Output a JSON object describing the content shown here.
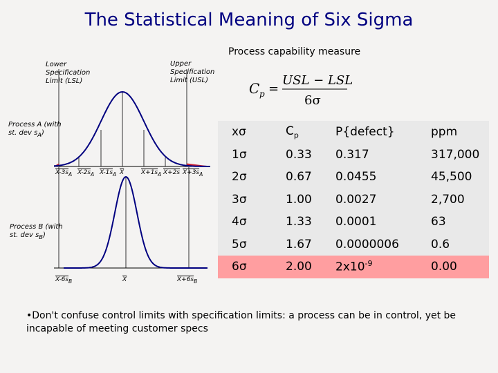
{
  "title": "The Statistical Meaning of Six Sigma",
  "capability_title": "Process capability measure",
  "lsl_label": "Lower Specification Limit (LSL)",
  "usl_label": "Upper Specification Limit (USL)",
  "process_a_label": "Process A (with st. dev s",
  "process_a_sub": "A",
  "process_b_label": "Process B (with st. dev s",
  "process_b_sub": "B",
  "formula": {
    "lhs": "C",
    "lhs_sub": "p",
    "eq": "=",
    "num": "USL − LSL",
    "den": "6σ"
  },
  "process_a_ticks": [
    "X-3s",
    "X-2s",
    "X-1s",
    "X",
    "X+1s",
    "X+2s",
    "X+3s"
  ],
  "process_a_tick_subs": [
    "A",
    "A",
    "A",
    "",
    "A",
    "",
    "A"
  ],
  "process_b_ticks": [
    "X-6s",
    "X",
    "X+6s"
  ],
  "process_b_tick_subs": [
    "B",
    "",
    "B"
  ],
  "table": {
    "headers": [
      "xσ",
      "C",
      "P{defect}",
      "ppm"
    ],
    "header_sub": "p",
    "rows": [
      [
        "1σ",
        "0.33",
        "0.317",
        "317,000"
      ],
      [
        "2σ",
        "0.67",
        "0.0455",
        "45,500"
      ],
      [
        "3σ",
        "1.00",
        "0.0027",
        "2,700"
      ],
      [
        "4σ",
        "1.33",
        "0.0001",
        "63"
      ],
      [
        "5σ",
        "1.67",
        "0.0000006",
        "0.6"
      ],
      [
        "6σ",
        "2.00",
        "2x10",
        "0.00"
      ]
    ],
    "last_row_exp": "-9"
  },
  "note": "•Don't confuse control limits with specification limits: a process can be in control, yet be incapable of meeting customer specs",
  "colors": {
    "title": "#000080",
    "curve": "#000080",
    "tail": "#cc2233",
    "highlight": "#ff9ea0"
  }
}
